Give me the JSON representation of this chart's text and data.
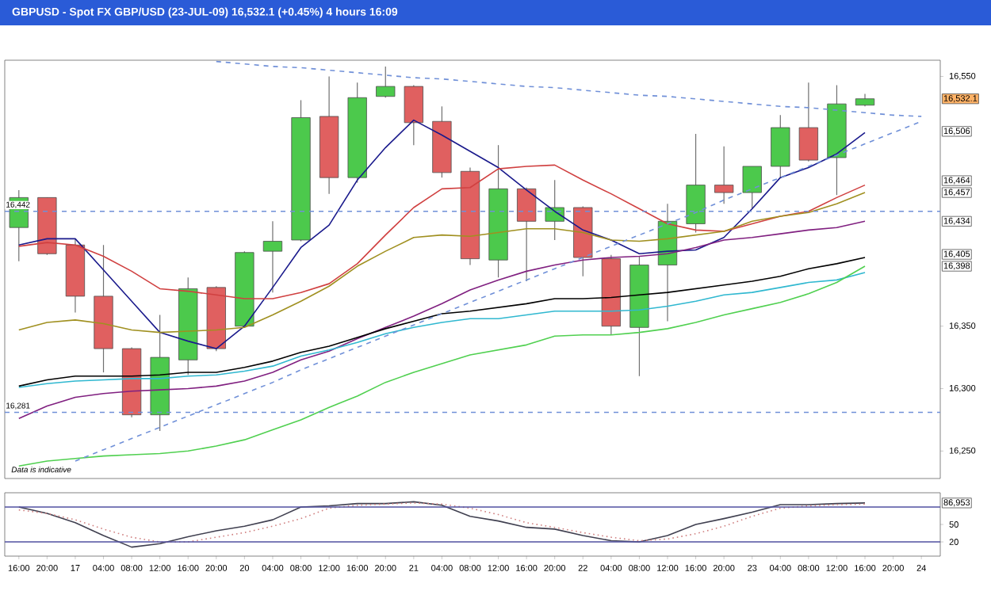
{
  "chart_data": [
    {
      "type": "candlestick",
      "title": "GBPUSD - Spot FX GBP/USD (23-JUL-09)    16,532.1 (+0.45%)    4 hours  16:09",
      "categories": [
        null,
        null,
        null,
        null,
        null,
        null,
        null,
        null,
        null,
        null,
        null,
        null,
        null,
        null,
        null,
        null,
        null,
        null,
        null,
        null,
        null,
        null,
        null,
        null,
        null,
        null,
        null,
        null,
        null,
        null,
        null,
        null,
        null
      ],
      "ohlc": [
        [
          16429,
          16459,
          16402,
          16453
        ],
        [
          16453,
          16453,
          16407,
          16408
        ],
        [
          16415,
          16420,
          16361,
          16374
        ],
        [
          16374,
          16415,
          16313,
          16332
        ],
        [
          16332,
          16333,
          16277,
          16279
        ],
        [
          16279,
          16359,
          16266,
          16325
        ],
        [
          16323,
          16389,
          16311,
          16380
        ],
        [
          16381,
          16382,
          16330,
          16332
        ],
        [
          16350,
          16410,
          16349,
          16409
        ],
        [
          16410,
          16434,
          16377,
          16418
        ],
        [
          16419,
          16531,
          16418,
          16517
        ],
        [
          16518,
          16550,
          16456,
          16469
        ],
        [
          16469,
          16545,
          16465,
          16533
        ],
        [
          16534,
          16558,
          16533,
          16542
        ],
        [
          16542,
          16543,
          16495,
          16513
        ],
        [
          16514,
          16526,
          16469,
          16473
        ],
        [
          16474,
          16477,
          16399,
          16404
        ],
        [
          16403,
          16495,
          16389,
          16460
        ],
        [
          16460,
          16461,
          16386,
          16434
        ],
        [
          16434,
          16467,
          16419,
          16445
        ],
        [
          16445,
          16446,
          16390,
          16405
        ],
        [
          16404,
          16407,
          16343,
          16350
        ],
        [
          16349,
          16406,
          16310,
          16399
        ],
        [
          16399,
          16448,
          16354,
          16434
        ],
        [
          16432,
          16504,
          16425,
          16463
        ],
        [
          16463,
          16494,
          16448,
          16457
        ],
        [
          16457,
          16478,
          16444,
          16478
        ],
        [
          16478,
          16519,
          16469,
          16509
        ],
        [
          16509,
          16545,
          16482,
          16483
        ],
        [
          16485,
          16543,
          16455,
          16528
        ],
        [
          16527,
          16536,
          16526,
          16532.1
        ],
        null,
        null
      ],
      "series": [
        {
          "type": "line",
          "color": "#1a1a8c",
          "values": [
            16415,
            16420,
            16420,
            16395,
            16370,
            16345,
            16338,
            16332,
            16350,
            16381,
            16413,
            16431,
            16467,
            16493,
            16515,
            16503,
            16490,
            16477,
            16459,
            16442,
            16427,
            16419,
            16408,
            16410,
            16411,
            16421,
            16444,
            16469,
            16477,
            16488,
            16505,
            null,
            null
          ]
        },
        {
          "type": "line",
          "color": "#d04040",
          "values": [
            16414,
            16417,
            16415,
            16406,
            16394,
            16380,
            16378,
            16375,
            16372,
            16372,
            16377,
            16384,
            16400,
            16423,
            16445,
            16460,
            16461,
            16476,
            16478,
            16479,
            16467,
            16456,
            16444,
            16432,
            16427,
            16426,
            16432,
            16438,
            16442,
            16453,
            16463,
            null,
            null
          ]
        },
        {
          "type": "line",
          "color": "#a09020",
          "values": [
            16347,
            16353,
            16355,
            16352,
            16347,
            16345,
            16346,
            16347,
            16349,
            16359,
            16370,
            16382,
            16398,
            16410,
            16421,
            16423,
            16422,
            16425,
            16428,
            16428,
            16425,
            16419,
            16418,
            16420,
            16423,
            16426,
            16434,
            16438,
            16441,
            16448,
            16457,
            null,
            null
          ]
        },
        {
          "type": "line",
          "color": "#802080",
          "values": [
            16276,
            16286,
            16293,
            16296,
            16298,
            16299,
            16300,
            16302,
            16306,
            16313,
            16323,
            16330,
            16340,
            16349,
            16358,
            16368,
            16379,
            16387,
            16394,
            16399,
            16403,
            16405,
            16406,
            16408,
            16413,
            16419,
            16421,
            16424,
            16427,
            16429,
            16434,
            null,
            null
          ]
        },
        {
          "type": "line",
          "color": "#000000",
          "values": [
            16302,
            16307,
            16310,
            16310,
            16310,
            16311,
            16313,
            16313,
            16317,
            16322,
            16329,
            16334,
            16341,
            16348,
            16354,
            16360,
            16362,
            16365,
            16368,
            16372,
            16372,
            16373,
            16375,
            16377,
            16380,
            16383,
            16386,
            16390,
            16396,
            16400,
            16405,
            null,
            null
          ]
        },
        {
          "type": "line",
          "color": "#30b8d0",
          "values": [
            16301,
            16304,
            16306,
            16307,
            16308,
            16308,
            16310,
            16311,
            16314,
            16318,
            16326,
            16331,
            16337,
            16344,
            16349,
            16353,
            16356,
            16356,
            16359,
            16362,
            16362,
            16362,
            16363,
            16366,
            16370,
            16375,
            16377,
            16381,
            16385,
            16387,
            16393,
            null,
            null
          ]
        },
        {
          "type": "line",
          "color": "#50d050",
          "values": [
            16238,
            16242,
            16244,
            16246,
            16247,
            16248,
            16250,
            16254,
            16259,
            16267,
            16275,
            16285,
            16294,
            16305,
            16313,
            16320,
            16327,
            16331,
            16335,
            16342,
            16343,
            16343,
            16345,
            16348,
            16353,
            16359,
            16364,
            16369,
            16376,
            16385,
            16398,
            null,
            null
          ]
        },
        {
          "type": "line",
          "color": "#7090d8",
          "line_style": "dashed",
          "values": [
            null,
            null,
            null,
            null,
            null,
            null,
            null,
            16562,
            16560,
            16558,
            16557,
            16555,
            16553,
            16551,
            16549,
            16548,
            16546,
            16544,
            16542,
            16541,
            16539,
            16537,
            16535,
            16534,
            16532,
            16530,
            16528,
            16526,
            16525,
            16523,
            16521,
            16519,
            16518
          ]
        },
        {
          "type": "line",
          "color": "#7090d8",
          "line_style": "dashed",
          "values": [
            null,
            null,
            16242,
            16251,
            16260,
            16269,
            16278,
            16287,
            16296,
            16305,
            16315,
            16324,
            16333,
            16342,
            16351,
            16360,
            16369,
            16378,
            16387,
            16396,
            16405,
            16414,
            16423,
            16432,
            16441,
            16451,
            16460,
            16469,
            16478,
            16487,
            16496,
            16505,
            16514
          ]
        }
      ],
      "ylim": [
        16228,
        16563
      ],
      "yticks": [
        {
          "value": 16250,
          "label": "16,250"
        },
        {
          "value": 16300,
          "label": "16,300"
        },
        {
          "value": 16350,
          "label": "16,350"
        },
        {
          "value": 16550,
          "label": "16,550"
        }
      ],
      "ref_lines": [
        {
          "axis": "y",
          "value": 16442,
          "label": "16,442",
          "color": "#7090d8",
          "line_style": "dashed"
        },
        {
          "axis": "y",
          "value": 16281,
          "label": "16,281",
          "color": "#7090d8",
          "line_style": "dashed"
        }
      ],
      "annotations": [
        "Data is indicative",
        "16,532.1",
        {
          "text": "16,506",
          "y": 16506
        },
        {
          "text": "16,464",
          "y": 16464
        },
        {
          "text": "16,457",
          "y": 16457
        },
        {
          "text": "16,434",
          "y": 16434
        },
        {
          "text": "16,405",
          "y": 16405
        },
        {
          "text": "16,398",
          "y": 16398
        }
      ],
      "tick_labels": "y"
    },
    {
      "type": "line",
      "categories": [
        "16:00",
        "20:00",
        "17",
        "04:00",
        "08:00",
        "12:00",
        "16:00",
        "20:00",
        "20",
        "04:00",
        "08:00",
        "12:00",
        "16:00",
        "20:00",
        "21",
        "04:00",
        "08:00",
        "12:00",
        "16:00",
        "20:00",
        "22",
        "04:00",
        "08:00",
        "12:00",
        "16:00",
        "20:00",
        "23",
        "04:00",
        "08:00",
        "12:00",
        "16:00",
        "20:00",
        "24"
      ],
      "series": [
        {
          "color": "#404050",
          "values": [
            80,
            69,
            53,
            31,
            11,
            17,
            29,
            39,
            47,
            58,
            80,
            82,
            86,
            86,
            89,
            83,
            64,
            56,
            45,
            42,
            31,
            22,
            20,
            31,
            50,
            60,
            71,
            84,
            84,
            86,
            87,
            null,
            null
          ]
        },
        {
          "color": "#d08080",
          "line_style": "dotted",
          "values": [
            75,
            69,
            58,
            42,
            28,
            20,
            20,
            28,
            36,
            47,
            60,
            78,
            83,
            85,
            87,
            85,
            78,
            67,
            53,
            45,
            36,
            28,
            22,
            25,
            34,
            47,
            64,
            78,
            82,
            84,
            85,
            null,
            null
          ]
        }
      ],
      "ylim": [
        -4.5,
        104.5
      ],
      "yticks": [
        20,
        50
      ],
      "ref_lines": [
        {
          "axis": "y",
          "value": 20,
          "color": "#5050a0"
        },
        {
          "axis": "y",
          "value": 80,
          "color": "#5050a0"
        }
      ],
      "annotations": [
        {
          "text": "86,953",
          "y": 86.953
        }
      ]
    }
  ]
}
